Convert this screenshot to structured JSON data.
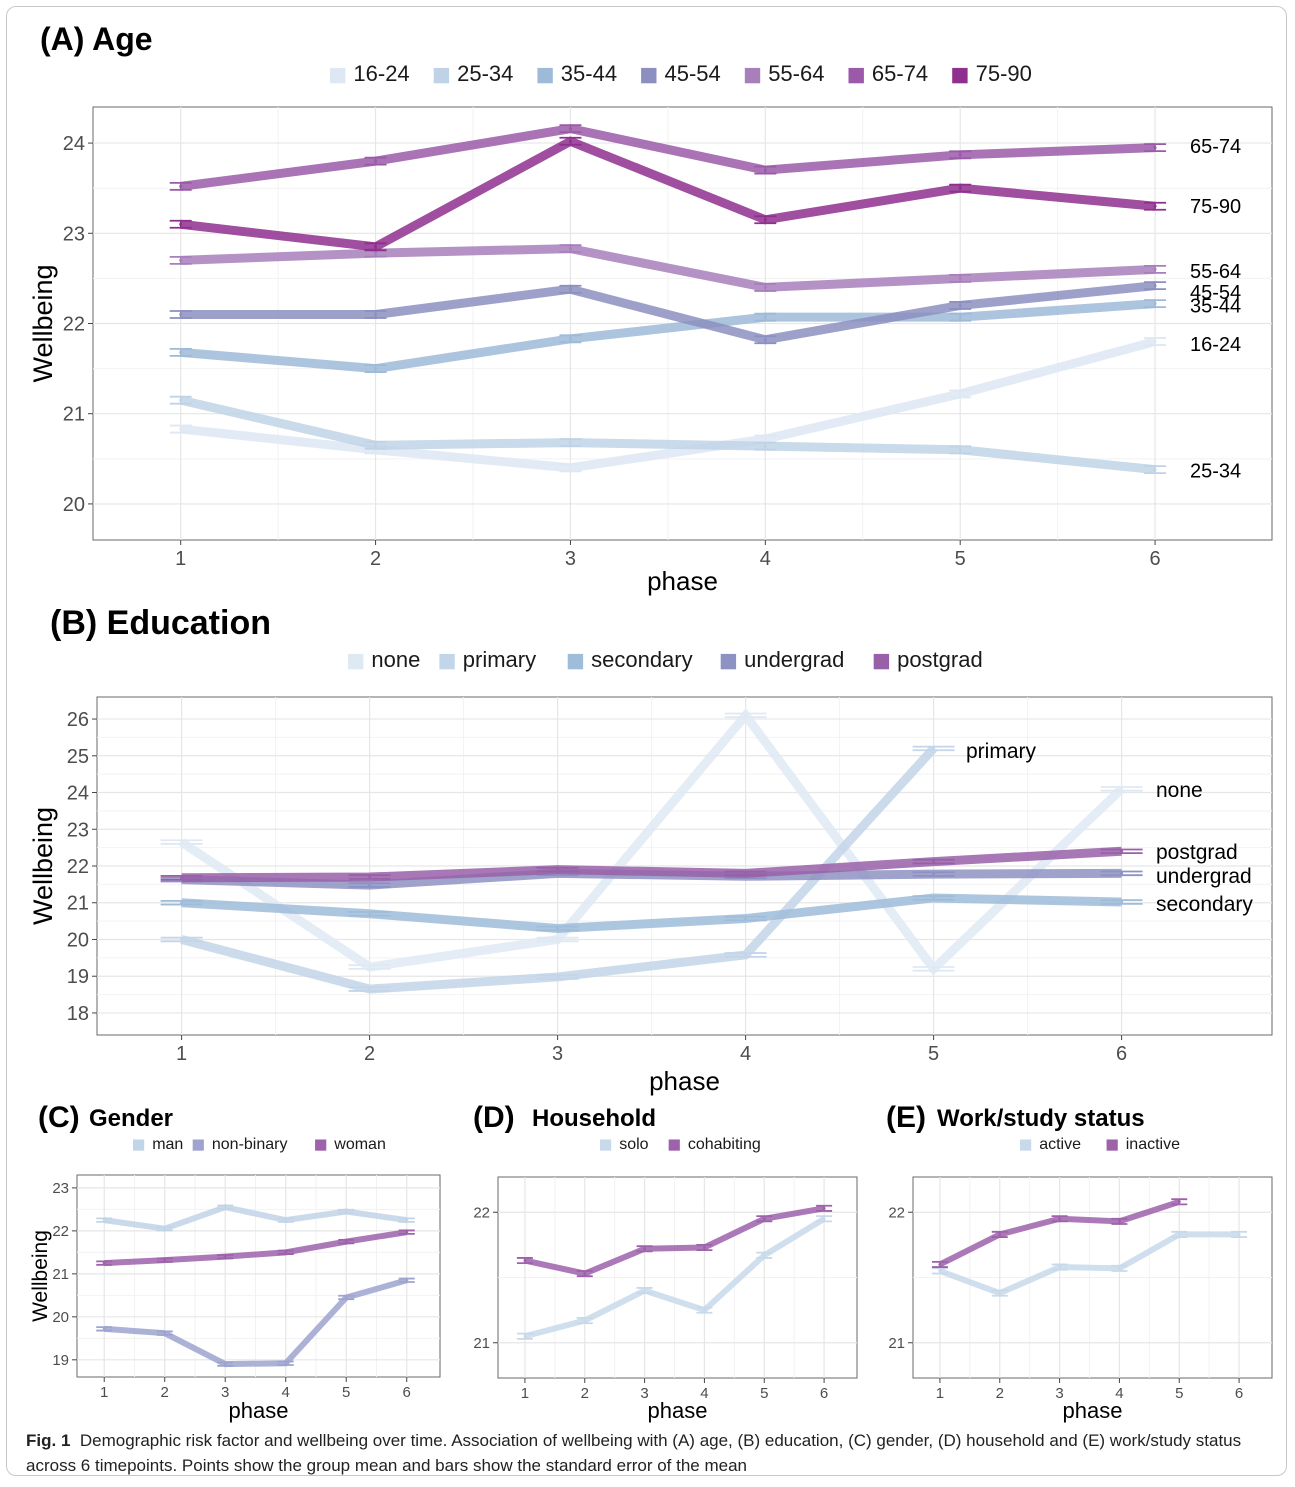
{
  "figure": {
    "caption_label": "Fig. 1",
    "caption_text": "Demographic risk factor and wellbeing over time. Association of wellbeing with (A) age, (B) education, (C) gender, (D) household and (E) work/study status across 6 timepoints. Points show the group mean and bars show the standard error of the mean"
  },
  "chart_data": [
    {
      "panel": "A",
      "type": "line",
      "title": "(A) Age",
      "xlabel": "phase",
      "ylabel": "Wellbeing",
      "x": [
        1,
        2,
        3,
        4,
        5,
        6
      ],
      "xlim": [
        0.55,
        6.6
      ],
      "ylim": [
        19.6,
        24.4
      ],
      "yticks": [
        20,
        21,
        22,
        23,
        24
      ],
      "grid": true,
      "legend_position": "top",
      "error_bars": true,
      "series": [
        {
          "name": "16-24",
          "color": "#dde8f3",
          "label": "16-24",
          "values": [
            20.83,
            20.6,
            20.4,
            20.72,
            21.22,
            21.8
          ]
        },
        {
          "name": "25-34",
          "color": "#c0d3e6",
          "label": "25-34",
          "values": [
            21.15,
            20.65,
            20.68,
            20.64,
            20.6,
            20.38
          ]
        },
        {
          "name": "35-44",
          "color": "#9dbad8",
          "label": "35-44",
          "values": [
            21.68,
            21.5,
            21.83,
            22.07,
            22.07,
            22.22
          ]
        },
        {
          "name": "45-54",
          "color": "#8c8fc0",
          "label": "45-54",
          "values": [
            22.1,
            22.1,
            22.38,
            21.82,
            22.2,
            22.42
          ]
        },
        {
          "name": "55-64",
          "color": "#a87fbb",
          "label": "55-64",
          "values": [
            22.7,
            22.78,
            22.83,
            22.4,
            22.5,
            22.6
          ]
        },
        {
          "name": "65-74",
          "color": "#9a5aa8",
          "label": "65-74",
          "values": [
            23.52,
            23.8,
            24.16,
            23.7,
            23.87,
            23.95
          ]
        },
        {
          "name": "75-90",
          "color": "#8f2f8e",
          "label": "75-90",
          "values": [
            23.1,
            22.85,
            24.02,
            23.15,
            23.5,
            23.3
          ]
        }
      ]
    },
    {
      "panel": "B",
      "type": "line",
      "title": "(B) Education",
      "xlabel": "phase",
      "ylabel": "Wellbeing",
      "x": [
        1,
        2,
        3,
        4,
        5,
        6
      ],
      "xlim": [
        0.55,
        6.8
      ],
      "ylim": [
        17.4,
        26.6
      ],
      "yticks": [
        18,
        19,
        20,
        21,
        22,
        23,
        24,
        25,
        26
      ],
      "grid": true,
      "legend_position": "top",
      "error_bars": true,
      "series": [
        {
          "name": "none",
          "color": "#dfe9f4",
          "label": "none",
          "values": [
            22.65,
            19.25,
            20.0,
            26.1,
            19.2,
            24.1
          ]
        },
        {
          "name": "primary",
          "color": "#c3d5e8",
          "label": "primary",
          "values": [
            20.0,
            18.65,
            18.98,
            19.58,
            25.2,
            null
          ]
        },
        {
          "name": "secondary",
          "color": "#9fbcd9",
          "label": "secondary",
          "values": [
            21.0,
            20.7,
            20.3,
            20.57,
            21.13,
            21.02
          ]
        },
        {
          "name": "undergrad",
          "color": "#8e92c2",
          "label": "undergrad",
          "values": [
            21.63,
            21.48,
            21.8,
            21.72,
            21.78,
            21.8
          ]
        },
        {
          "name": "postgrad",
          "color": "#9860a8",
          "label": "postgrad",
          "values": [
            21.68,
            21.7,
            21.9,
            21.8,
            22.12,
            22.4
          ]
        }
      ]
    },
    {
      "panel": "C",
      "type": "line",
      "title": "Gender",
      "letter": "(C)",
      "xlabel": "phase",
      "ylabel": "Wellbeing",
      "x": [
        1,
        2,
        3,
        4,
        5,
        6
      ],
      "xlim": [
        0.55,
        6.55
      ],
      "ylim": [
        18.6,
        23.3
      ],
      "yticks": [
        19,
        20,
        21,
        22,
        23
      ],
      "grid": true,
      "legend_position": "top",
      "error_bars": true,
      "series": [
        {
          "name": "man",
          "color": "#c2d4e7",
          "values": [
            22.25,
            22.05,
            22.55,
            22.25,
            22.45,
            22.25
          ]
        },
        {
          "name": "non-binary",
          "color": "#9ea3cf",
          "values": [
            19.72,
            19.62,
            18.9,
            18.92,
            20.45,
            20.85
          ]
        },
        {
          "name": "woman",
          "color": "#9e62ab",
          "values": [
            21.25,
            21.32,
            21.4,
            21.5,
            21.75,
            21.97
          ]
        }
      ]
    },
    {
      "panel": "D",
      "type": "line",
      "title": "Household",
      "letter": "(D)",
      "xlabel": "phase",
      "ylabel": "",
      "x": [
        1,
        2,
        3,
        4,
        5,
        6
      ],
      "xlim": [
        0.55,
        6.55
      ],
      "ylim": [
        20.73,
        22.27
      ],
      "yticks": [
        21,
        22
      ],
      "grid": true,
      "legend_position": "top",
      "error_bars": true,
      "series": [
        {
          "name": "solo",
          "color": "#c8d9ea",
          "values": [
            21.05,
            21.17,
            21.4,
            21.25,
            21.67,
            21.95
          ]
        },
        {
          "name": "cohabiting",
          "color": "#9e62ab",
          "values": [
            21.63,
            21.53,
            21.72,
            21.73,
            21.95,
            22.03
          ]
        }
      ]
    },
    {
      "panel": "E",
      "type": "line",
      "title": "Work/study status",
      "letter": "(E)",
      "xlabel": "phase",
      "ylabel": "",
      "x": [
        1,
        2,
        3,
        4,
        5,
        6
      ],
      "xlim": [
        0.55,
        6.55
      ],
      "ylim": [
        20.73,
        22.27
      ],
      "yticks": [
        21,
        22
      ],
      "grid": true,
      "legend_position": "top",
      "error_bars": true,
      "series": [
        {
          "name": "active",
          "color": "#c8d9ea",
          "values": [
            21.55,
            21.38,
            21.58,
            21.57,
            21.83,
            21.83
          ]
        },
        {
          "name": "inactive",
          "color": "#9e62ab",
          "values": [
            21.6,
            21.83,
            21.95,
            21.93,
            22.08,
            null
          ]
        }
      ]
    }
  ]
}
